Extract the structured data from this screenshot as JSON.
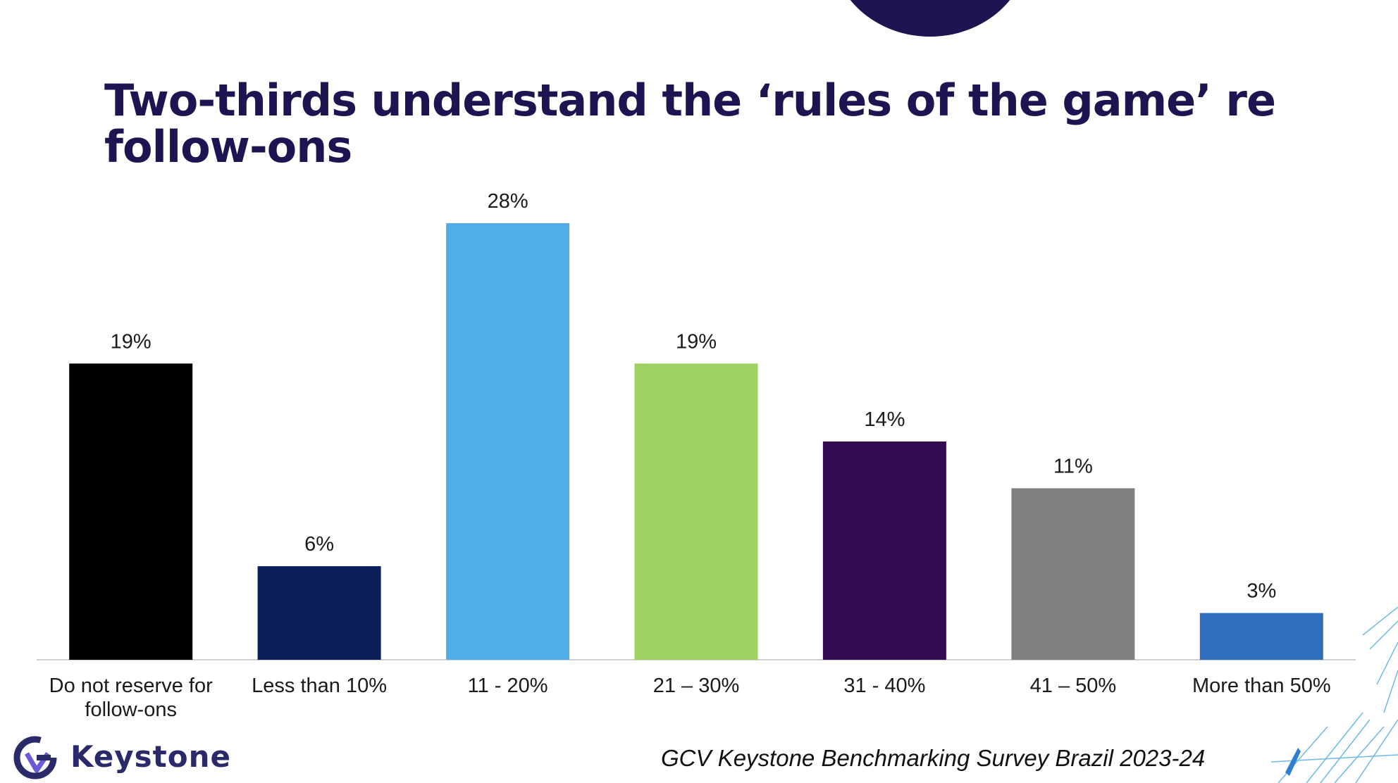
{
  "title": "Two-thirds understand the ‘rules of the game’ re follow-ons",
  "brand": {
    "name": "Keystone",
    "accent": "#1e1452"
  },
  "source": "GCV Keystone Benchmarking Survey Brazil 2023-24",
  "chart_data": {
    "type": "bar",
    "title": "",
    "xlabel": "",
    "ylabel": "",
    "categories": [
      "Do not reserve for follow-ons",
      "Less than 10%",
      "11 - 20%",
      "21 – 30%",
      "31 - 40%",
      "41 – 50%",
      "More than 50%"
    ],
    "category_lines": [
      [
        "Do not reserve for",
        "follow-ons"
      ],
      [
        "Less than 10%"
      ],
      [
        "11 - 20%"
      ],
      [
        "21 – 30%"
      ],
      [
        "31 - 40%"
      ],
      [
        "41 – 50%"
      ],
      [
        "More than 50%"
      ]
    ],
    "values": [
      19,
      6,
      28,
      19,
      14,
      11,
      3
    ],
    "data_labels": [
      "19%",
      "6%",
      "28%",
      "19%",
      "14%",
      "11%",
      "3%"
    ],
    "colors": [
      "#000000",
      "#0b1f5b",
      "#51adea",
      "#9fd062",
      "#340c52",
      "#808080",
      "#2f6ebd"
    ],
    "ylim": [
      0,
      28
    ],
    "grid": false,
    "legend": "none"
  }
}
